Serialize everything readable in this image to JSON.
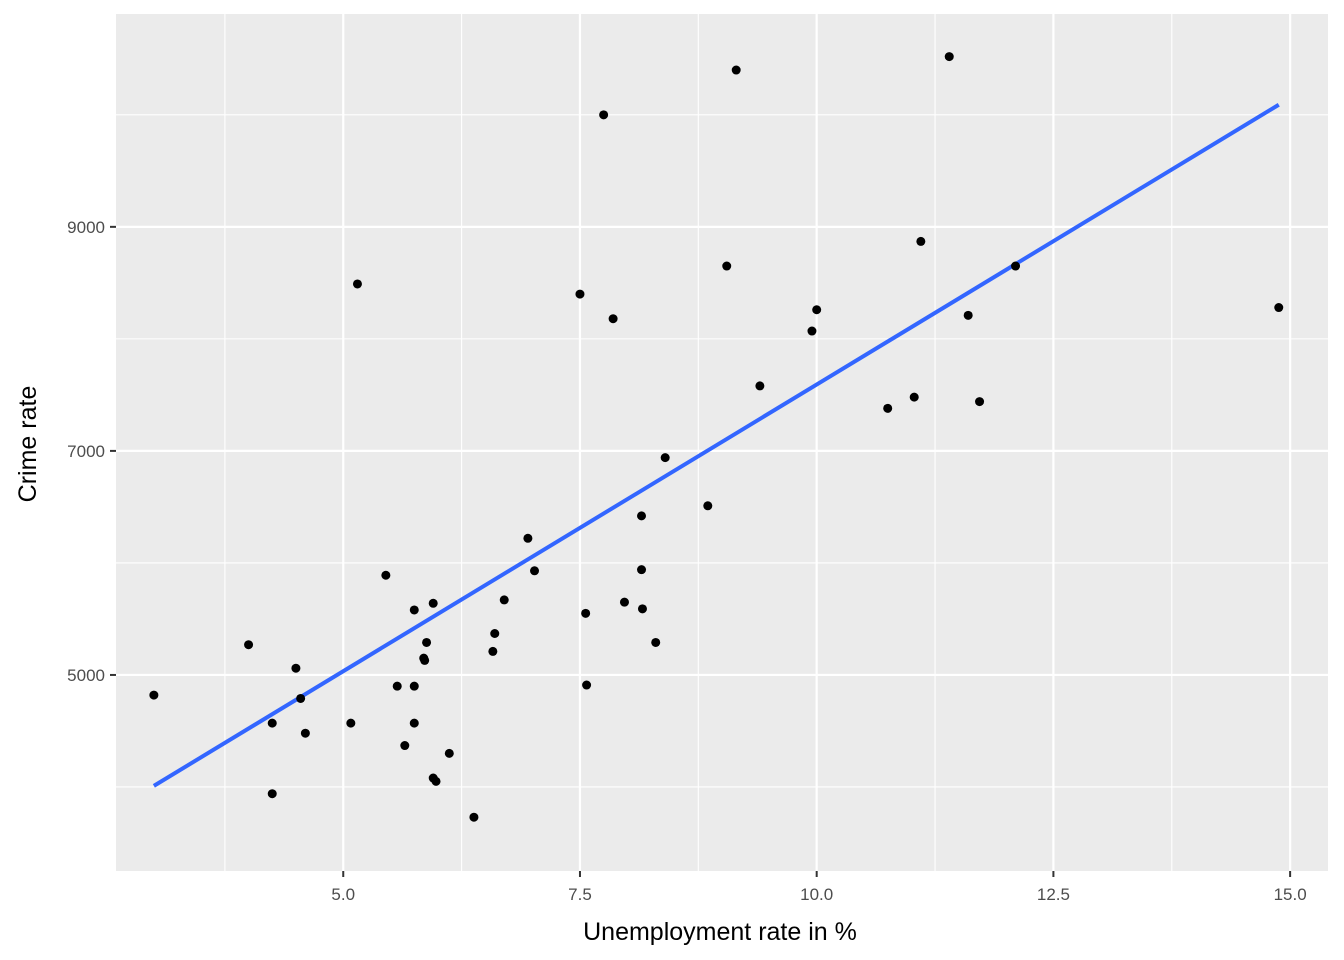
{
  "chart_data": {
    "type": "scatter",
    "title": "",
    "xlabel": "Unemployment rate in %",
    "ylabel": "Crime rate",
    "xlim": [
      2.6,
      15.4
    ],
    "ylim": [
      3250,
      10900
    ],
    "x_ticks": [
      5.0,
      7.5,
      10.0,
      12.5,
      15.0
    ],
    "x_tick_labels": [
      "5.0",
      "7.5",
      "10.0",
      "12.5",
      "15.0"
    ],
    "y_ticks": [
      5000,
      7000,
      9000
    ],
    "y_tick_labels": [
      "5000",
      "7000",
      "9000"
    ],
    "grid": true,
    "colors": {
      "panel": "#ebebeb",
      "grid": "#ffffff",
      "point": "#000000",
      "line": "#3366ff"
    },
    "fit_line": {
      "x": [
        3.0,
        14.88
      ],
      "y": [
        4010,
        10090
      ]
    },
    "points": [
      {
        "x": 3.0,
        "y": 4820
      },
      {
        "x": 4.0,
        "y": 5270
      },
      {
        "x": 4.25,
        "y": 4570
      },
      {
        "x": 4.25,
        "y": 3940
      },
      {
        "x": 4.5,
        "y": 5060
      },
      {
        "x": 4.55,
        "y": 4790
      },
      {
        "x": 4.6,
        "y": 4480
      },
      {
        "x": 5.08,
        "y": 4570
      },
      {
        "x": 5.15,
        "y": 8490
      },
      {
        "x": 5.45,
        "y": 5890
      },
      {
        "x": 5.57,
        "y": 4900
      },
      {
        "x": 5.65,
        "y": 4370
      },
      {
        "x": 5.75,
        "y": 5580
      },
      {
        "x": 5.75,
        "y": 4900
      },
      {
        "x": 5.75,
        "y": 4570
      },
      {
        "x": 5.85,
        "y": 5150
      },
      {
        "x": 5.86,
        "y": 5130
      },
      {
        "x": 5.88,
        "y": 5290
      },
      {
        "x": 5.95,
        "y": 5640
      },
      {
        "x": 5.95,
        "y": 4080
      },
      {
        "x": 5.98,
        "y": 4050
      },
      {
        "x": 6.12,
        "y": 4300
      },
      {
        "x": 6.38,
        "y": 3730
      },
      {
        "x": 6.58,
        "y": 5210
      },
      {
        "x": 6.6,
        "y": 5370
      },
      {
        "x": 6.7,
        "y": 5670
      },
      {
        "x": 6.95,
        "y": 6220
      },
      {
        "x": 7.02,
        "y": 5930
      },
      {
        "x": 7.5,
        "y": 8400
      },
      {
        "x": 7.56,
        "y": 5550
      },
      {
        "x": 7.57,
        "y": 4910
      },
      {
        "x": 7.75,
        "y": 10000
      },
      {
        "x": 7.85,
        "y": 8180
      },
      {
        "x": 7.97,
        "y": 5650
      },
      {
        "x": 8.15,
        "y": 6420
      },
      {
        "x": 8.15,
        "y": 5940
      },
      {
        "x": 8.16,
        "y": 5590
      },
      {
        "x": 8.3,
        "y": 5290
      },
      {
        "x": 8.4,
        "y": 6940
      },
      {
        "x": 8.85,
        "y": 6510
      },
      {
        "x": 9.05,
        "y": 8650
      },
      {
        "x": 9.15,
        "y": 10400
      },
      {
        "x": 9.4,
        "y": 7580
      },
      {
        "x": 9.95,
        "y": 8070
      },
      {
        "x": 10.0,
        "y": 8260
      },
      {
        "x": 10.75,
        "y": 7380
      },
      {
        "x": 11.03,
        "y": 7480
      },
      {
        "x": 11.1,
        "y": 8870
      },
      {
        "x": 11.4,
        "y": 10520
      },
      {
        "x": 11.6,
        "y": 8210
      },
      {
        "x": 11.72,
        "y": 7440
      },
      {
        "x": 12.1,
        "y": 8650
      },
      {
        "x": 14.88,
        "y": 8280
      }
    ]
  }
}
